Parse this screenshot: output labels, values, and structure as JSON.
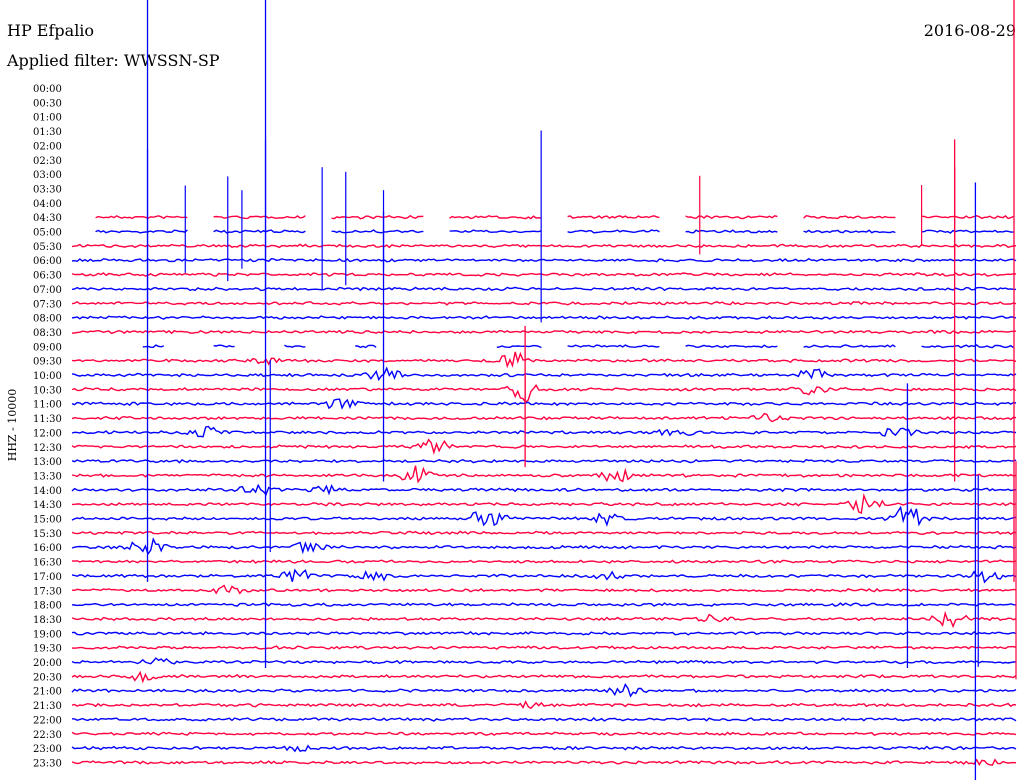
{
  "header": {
    "station": "HP Efpalio",
    "date": "2016-08-29",
    "filter": "Applied filter: WWSSN-SP"
  },
  "chart_data": {
    "type": "line",
    "title": "HP Efpalio",
    "date": "2016-08-29",
    "filter": "Applied filter: WWSSN-SP",
    "ylabel": "HHZ - 10000",
    "row_labels": [
      "00:00",
      "00:30",
      "01:00",
      "01:30",
      "02:00",
      "02:30",
      "03:00",
      "03:30",
      "04:00",
      "04:30",
      "05:00",
      "05:30",
      "06:00",
      "06:30",
      "07:00",
      "07:30",
      "08:00",
      "08:30",
      "09:00",
      "09:30",
      "10:00",
      "10:30",
      "11:00",
      "11:30",
      "12:00",
      "12:30",
      "13:00",
      "13:30",
      "14:00",
      "14:30",
      "15:00",
      "15:30",
      "16:00",
      "16:30",
      "17:00",
      "17:30",
      "18:00",
      "18:30",
      "19:00",
      "19:30",
      "20:00",
      "20:30",
      "21:00",
      "21:30",
      "22:00",
      "22:30",
      "23:00",
      "23:30"
    ],
    "colors": {
      "odd": "#0000ff",
      "even": "#ff0040"
    },
    "gappy_rows": [
      "04:30",
      "05:00",
      "09:00"
    ],
    "spikes": [
      {
        "row": "05:00",
        "t": 0.08,
        "amp": 18,
        "color": "#0000ff"
      },
      {
        "row": "05:00",
        "t": 0.12,
        "amp": 10,
        "color": "#0000ff"
      },
      {
        "row": "05:00",
        "t": 0.165,
        "amp": 12,
        "color": "#0000ff"
      },
      {
        "row": "05:00",
        "t": 0.18,
        "amp": 9,
        "color": "#0000ff"
      },
      {
        "row": "05:00",
        "t": 0.205,
        "amp": 20,
        "color": "#0000ff"
      },
      {
        "row": "05:00",
        "t": 0.265,
        "amp": 14,
        "color": "#0000ff"
      },
      {
        "row": "05:00",
        "t": 0.29,
        "amp": 13,
        "color": "#0000ff"
      },
      {
        "row": "05:00",
        "t": 0.33,
        "amp": 9,
        "color": "#0000ff"
      },
      {
        "row": "05:00",
        "t": 0.497,
        "amp": 22,
        "color": "#0000ff"
      },
      {
        "row": "04:30",
        "t": 0.665,
        "amp": 9,
        "color": "#ff0040"
      },
      {
        "row": "04:30",
        "t": 0.9,
        "amp": 7,
        "color": "#ff0040"
      },
      {
        "row": "04:30",
        "t": 0.935,
        "amp": 11,
        "color": "#ff0040"
      },
      {
        "row": "13:00",
        "t": 0.21,
        "amp": 22,
        "color": "#0000ff"
      },
      {
        "row": "10:30",
        "t": 0.48,
        "amp": 3,
        "color": "#ff0040"
      },
      {
        "row": "15:00",
        "t": 0.885,
        "amp": 8,
        "color": "#0000ff"
      },
      {
        "row": "17:00",
        "t": 0.96,
        "amp": 22,
        "color": "#0000ff"
      },
      {
        "row": "17:00",
        "t": 1.0,
        "amp": 25,
        "color": "#ff0040"
      }
    ],
    "events": [
      {
        "row": "09:30",
        "t": 0.2,
        "amp": 4
      },
      {
        "row": "09:30",
        "t": 0.47,
        "amp": 8
      },
      {
        "row": "10:00",
        "t": 0.33,
        "amp": 7
      },
      {
        "row": "10:00",
        "t": 0.785,
        "amp": 6
      },
      {
        "row": "10:30",
        "t": 0.48,
        "amp": 14
      },
      {
        "row": "10:30",
        "t": 0.78,
        "amp": 5
      },
      {
        "row": "11:00",
        "t": 0.285,
        "amp": 7
      },
      {
        "row": "11:30",
        "t": 0.74,
        "amp": 5
      },
      {
        "row": "12:00",
        "t": 0.14,
        "amp": 6
      },
      {
        "row": "12:00",
        "t": 0.64,
        "amp": 4
      },
      {
        "row": "12:00",
        "t": 0.875,
        "amp": 6
      },
      {
        "row": "12:30",
        "t": 0.385,
        "amp": 8
      },
      {
        "row": "13:30",
        "t": 0.365,
        "amp": 9
      },
      {
        "row": "13:30",
        "t": 0.575,
        "amp": 8
      },
      {
        "row": "14:00",
        "t": 0.195,
        "amp": 6
      },
      {
        "row": "14:00",
        "t": 0.27,
        "amp": 5
      },
      {
        "row": "14:30",
        "t": 0.84,
        "amp": 9
      },
      {
        "row": "15:00",
        "t": 0.44,
        "amp": 12
      },
      {
        "row": "15:00",
        "t": 0.885,
        "amp": 14
      },
      {
        "row": "15:00",
        "t": 0.57,
        "amp": 6
      },
      {
        "row": "16:00",
        "t": 0.08,
        "amp": 9
      },
      {
        "row": "16:00",
        "t": 0.25,
        "amp": 5
      },
      {
        "row": "17:00",
        "t": 0.24,
        "amp": 7
      },
      {
        "row": "17:00",
        "t": 0.32,
        "amp": 6
      },
      {
        "row": "17:00",
        "t": 0.57,
        "amp": 5
      },
      {
        "row": "17:00",
        "t": 0.965,
        "amp": 7
      },
      {
        "row": "17:30",
        "t": 0.165,
        "amp": 5
      },
      {
        "row": "18:30",
        "t": 0.68,
        "amp": 6
      },
      {
        "row": "18:30",
        "t": 0.93,
        "amp": 8
      },
      {
        "row": "20:00",
        "t": 0.09,
        "amp": 4
      },
      {
        "row": "20:30",
        "t": 0.075,
        "amp": 4
      },
      {
        "row": "21:00",
        "t": 0.585,
        "amp": 6
      },
      {
        "row": "21:30",
        "t": 0.48,
        "amp": 4
      },
      {
        "row": "23:00",
        "t": 0.24,
        "amp": 3
      },
      {
        "row": "23:30",
        "t": 0.965,
        "amp": 3
      }
    ],
    "tall_lines": [
      {
        "t": 0.08,
        "from": "00:00",
        "to": "17:00",
        "color": "#0000ff"
      },
      {
        "t": 0.205,
        "from": "00:00",
        "to": "20:00",
        "color": "#0000ff"
      },
      {
        "t": 0.885,
        "from": "10:30",
        "to": "20:00",
        "color": "#0000ff"
      },
      {
        "t": 0.957,
        "from": "03:30",
        "to": "23:30",
        "color": "#0000ff"
      },
      {
        "t": 1.0,
        "from": "00:00",
        "to": "17:00",
        "color": "#ff0040"
      },
      {
        "t": 0.935,
        "from": "02:00",
        "to": "13:30",
        "color": "#ff0040"
      },
      {
        "t": 0.33,
        "from": "04:30",
        "to": "13:30",
        "color": "#0000ff"
      },
      {
        "t": 0.48,
        "from": "08:30",
        "to": "13:00",
        "color": "#ff0040"
      }
    ]
  }
}
